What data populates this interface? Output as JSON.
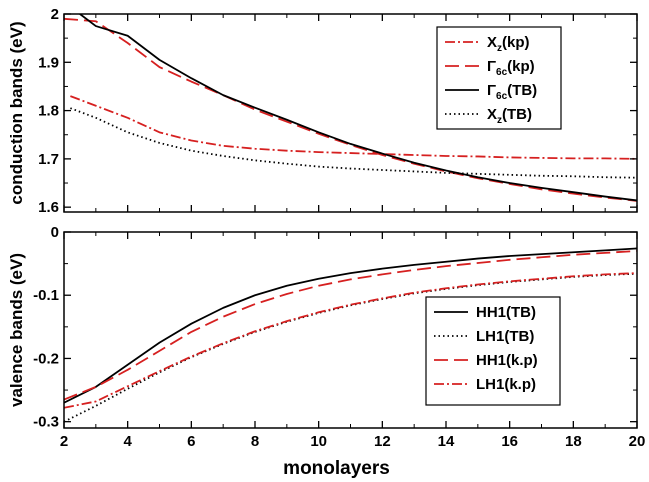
{
  "chart_data": [
    {
      "type": "line",
      "ylabel": "conduction bands (eV)",
      "xlabel": "",
      "xlim": [
        2,
        20
      ],
      "ylim": [
        1.59,
        2.0
      ],
      "x_ticks": [
        2,
        4,
        6,
        8,
        10,
        12,
        14,
        16,
        18,
        20
      ],
      "x_tick_labels": [
        "",
        "",
        "",
        "",
        "",
        "",
        "",
        "",
        "",
        ""
      ],
      "y_ticks": [
        1.6,
        1.7,
        1.8,
        1.9,
        2.0
      ],
      "y_tick_labels": [
        "1.6",
        "1.7",
        "1.8",
        "1.9",
        "2"
      ],
      "legend_position": "top-right",
      "series": [
        {
          "name": "X",
          "sub": "z",
          "suffix": "(kp)",
          "color": "#d62020",
          "dash": "10,3,2,3",
          "x": [
            2.2,
            3,
            4,
            5,
            6,
            7,
            8,
            9,
            10,
            11,
            12,
            13,
            14,
            15,
            16,
            17,
            18,
            19,
            20
          ],
          "y": [
            1.83,
            1.81,
            1.785,
            1.755,
            1.738,
            1.727,
            1.721,
            1.717,
            1.714,
            1.712,
            1.71,
            1.708,
            1.706,
            1.705,
            1.703,
            1.702,
            1.701,
            1.701,
            1.7
          ]
        },
        {
          "name": "Γ",
          "sub": "6c",
          "suffix": "(kp)",
          "color": "#d62020",
          "dash": "14,6",
          "x": [
            2,
            3,
            4,
            5,
            6,
            7,
            8,
            9,
            10,
            11,
            12,
            13,
            14,
            15,
            16,
            17,
            18,
            19,
            20
          ],
          "y": [
            1.99,
            1.985,
            1.94,
            1.89,
            1.86,
            1.832,
            1.802,
            1.777,
            1.752,
            1.729,
            1.708,
            1.69,
            1.674,
            1.66,
            1.648,
            1.637,
            1.628,
            1.62,
            1.613
          ]
        },
        {
          "name": "Γ",
          "sub": "6c",
          "suffix": "(TB)",
          "color": "#000000",
          "dash": "",
          "x": [
            2.5,
            3,
            4,
            5,
            6,
            7,
            8,
            9,
            10,
            11,
            12,
            13,
            14,
            15,
            16,
            17,
            18,
            19,
            20
          ],
          "y": [
            2.0,
            1.975,
            1.955,
            1.905,
            1.867,
            1.832,
            1.806,
            1.781,
            1.755,
            1.731,
            1.711,
            1.692,
            1.676,
            1.662,
            1.65,
            1.64,
            1.631,
            1.622,
            1.614
          ]
        },
        {
          "name": "X",
          "sub": "z",
          "suffix": "(TB)",
          "color": "#000000",
          "dash": "1.5,3",
          "x": [
            2.2,
            3,
            4,
            5,
            6,
            7,
            8,
            9,
            10,
            11,
            12,
            13,
            14,
            15,
            16,
            17,
            18,
            19,
            20
          ],
          "y": [
            1.805,
            1.785,
            1.755,
            1.733,
            1.717,
            1.706,
            1.697,
            1.69,
            1.684,
            1.68,
            1.677,
            1.674,
            1.671,
            1.669,
            1.667,
            1.665,
            1.664,
            1.662,
            1.661
          ]
        }
      ]
    },
    {
      "type": "line",
      "ylabel": "valence bands (eV)",
      "xlabel": "monolayers",
      "xlim": [
        2,
        20
      ],
      "ylim": [
        -0.31,
        0.0
      ],
      "x_ticks": [
        2,
        4,
        6,
        8,
        10,
        12,
        14,
        16,
        18,
        20
      ],
      "x_tick_labels": [
        "2",
        "4",
        "6",
        "8",
        "10",
        "12",
        "14",
        "16",
        "18",
        "20"
      ],
      "y_ticks": [
        -0.3,
        -0.2,
        -0.1,
        0.0
      ],
      "y_tick_labels": [
        "-0.3",
        "-0.2",
        "-0.1",
        "0"
      ],
      "legend_position": "bottom-right",
      "series": [
        {
          "name": "HH1(TB)",
          "sub": "",
          "suffix": "",
          "color": "#000000",
          "dash": "",
          "x": [
            2,
            3,
            4,
            5,
            6,
            7,
            8,
            9,
            10,
            11,
            12,
            13,
            14,
            15,
            16,
            17,
            18,
            19,
            20
          ],
          "y": [
            -0.27,
            -0.245,
            -0.21,
            -0.175,
            -0.145,
            -0.12,
            -0.1,
            -0.085,
            -0.074,
            -0.065,
            -0.058,
            -0.052,
            -0.047,
            -0.042,
            -0.038,
            -0.035,
            -0.032,
            -0.029,
            -0.026
          ]
        },
        {
          "name": "LH1(TB)",
          "sub": "",
          "suffix": "",
          "color": "#000000",
          "dash": "1.5,3",
          "x": [
            2,
            3,
            4,
            5,
            6,
            7,
            8,
            9,
            10,
            11,
            12,
            13,
            14,
            15,
            16,
            17,
            18,
            19,
            20
          ],
          "y": [
            -0.3,
            -0.275,
            -0.248,
            -0.222,
            -0.198,
            -0.177,
            -0.158,
            -0.142,
            -0.128,
            -0.116,
            -0.106,
            -0.097,
            -0.09,
            -0.084,
            -0.079,
            -0.075,
            -0.071,
            -0.068,
            -0.066
          ]
        },
        {
          "name": "HH1(k.p)",
          "sub": "",
          "suffix": "",
          "color": "#d62020",
          "dash": "14,6",
          "x": [
            2,
            3,
            4,
            5,
            6,
            7,
            8,
            9,
            10,
            11,
            12,
            13,
            14,
            15,
            16,
            17,
            18,
            19,
            20
          ],
          "y": [
            -0.265,
            -0.245,
            -0.218,
            -0.188,
            -0.158,
            -0.134,
            -0.114,
            -0.098,
            -0.085,
            -0.075,
            -0.067,
            -0.06,
            -0.054,
            -0.049,
            -0.044,
            -0.04,
            -0.036,
            -0.033,
            -0.03
          ]
        },
        {
          "name": "LH1(k.p)",
          "sub": "",
          "suffix": "",
          "color": "#d62020",
          "dash": "10,3,2,3",
          "x": [
            2,
            3,
            4,
            5,
            6,
            7,
            8,
            9,
            10,
            11,
            12,
            13,
            14,
            15,
            16,
            17,
            18,
            19,
            20
          ],
          "y": [
            -0.278,
            -0.268,
            -0.244,
            -0.22,
            -0.197,
            -0.176,
            -0.157,
            -0.141,
            -0.127,
            -0.115,
            -0.105,
            -0.096,
            -0.089,
            -0.083,
            -0.078,
            -0.074,
            -0.07,
            -0.067,
            -0.065
          ]
        }
      ]
    }
  ]
}
